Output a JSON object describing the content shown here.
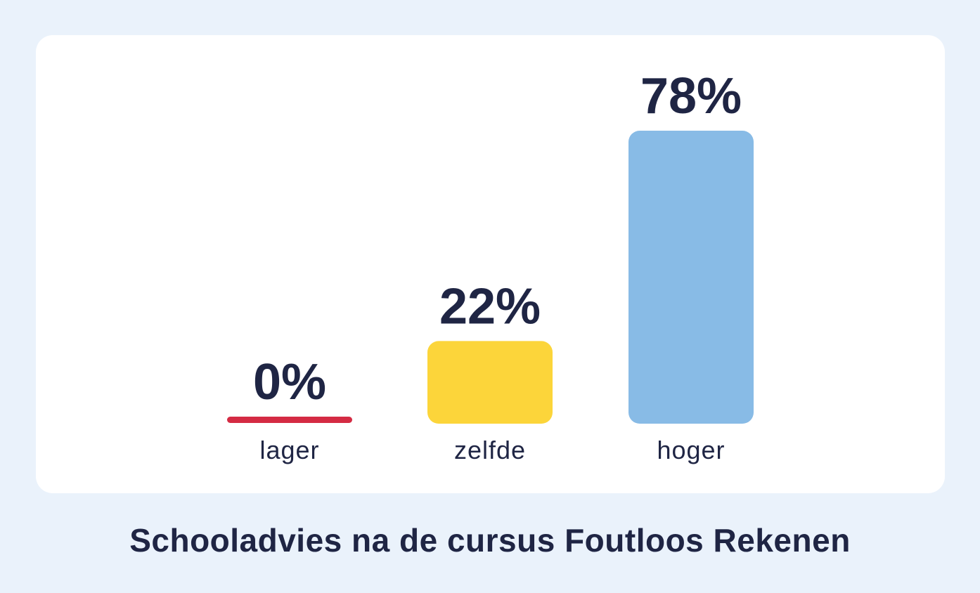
{
  "chart_data": {
    "type": "bar",
    "title": "Schooladvies na de cursus Foutloos Rekenen",
    "categories": [
      "lager",
      "zelfde",
      "hoger"
    ],
    "values": [
      0,
      22,
      78
    ],
    "value_labels": [
      "0%",
      "22%",
      "78%"
    ],
    "colors": [
      "#d42b43",
      "#fcd53a",
      "#88bbe6"
    ],
    "ylim": [
      0,
      78
    ],
    "grid": false,
    "legend": "none"
  }
}
